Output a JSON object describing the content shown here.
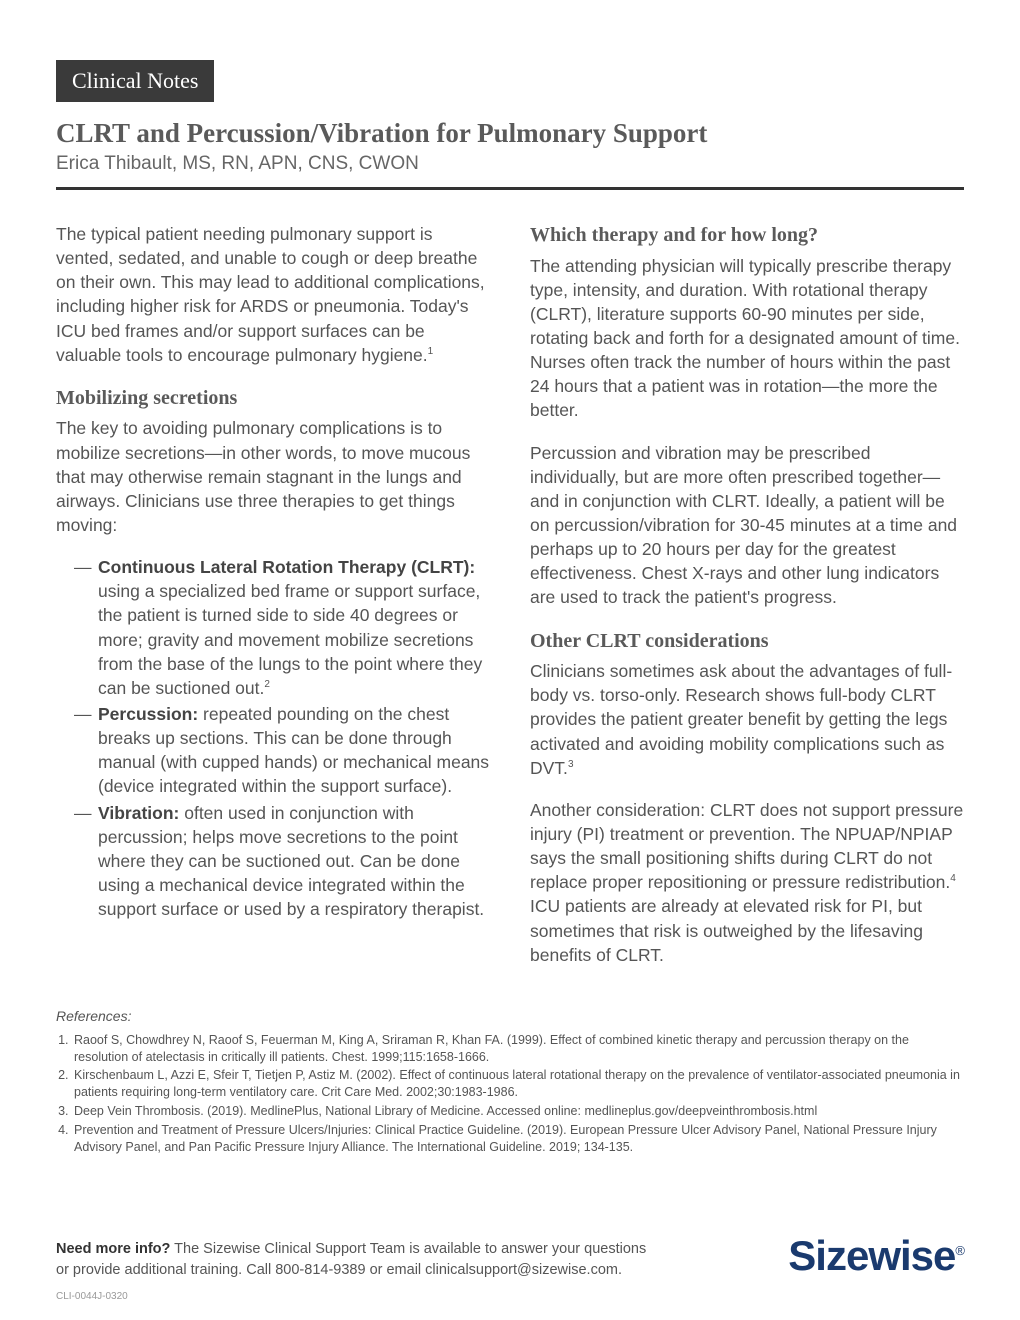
{
  "badge": "Clinical Notes",
  "title": "CLRT and Percussion/Vibration for Pulmonary Support",
  "author": "Erica Thibault, MS, RN, APN, CNS, CWON",
  "left": {
    "intro": "The typical patient needing pulmonary support is vented, sedated, and unable to cough or deep breathe on their own. This may lead to additional complications, including higher risk for ARDS or pneumonia. Today's ICU bed frames and/or support surfaces can be valuable tools to encourage pulmonary hygiene.",
    "intro_sup": "1",
    "h2a": "Mobilizing secretions",
    "p2": "The key to avoiding pulmonary complications is to mobilize secretions—in other words, to move mucous that may otherwise remain stagnant in the lungs and airways. Clinicians use three therapies to get things moving:",
    "li1_b": "Continuous Lateral Rotation Therapy (CLRT):",
    "li1": " using a specialized bed frame or support surface, the patient is turned side to side 40 degrees or more; gravity and movement mobilize secretions from the base of the lungs to the point where they can be suctioned out.",
    "li1_sup": "2",
    "li2_b": "Percussion:",
    "li2": " repeated pounding on the chest breaks up sections. This can be done through manual (with cupped hands) or mechanical means (device integrated within the support surface).",
    "li3_b": "Vibration:",
    "li3": " often used in conjunction with percussion; helps move secretions to the point where they can be suctioned out. Can be done using a mechanical device integrated within the support surface or used by a respiratory therapist."
  },
  "right": {
    "h2a": "Which therapy and for how long?",
    "p1": "The attending physician will typically prescribe therapy type, intensity, and duration. With rotational therapy (CLRT), literature supports 60-90 minutes per side, rotating back and forth for a designated amount of time. Nurses often track the number of hours within the past 24 hours that a patient was in rotation—the more the better.",
    "p2": "Percussion and vibration may be prescribed individually, but are more often prescribed together—and in conjunction with CLRT. Ideally, a patient will be on percussion/vibration for 30-45 minutes at a time and perhaps up to 20 hours per day for the greatest effectiveness. Chest X-rays and other lung indicators are used to track the patient's progress.",
    "h2b": "Other CLRT considerations",
    "p3a": "Clinicians sometimes ask about the advantages of full-body vs. torso-only. Research shows full-body CLRT provides the patient greater benefit by getting the legs activated and avoiding mobility complications such as DVT.",
    "p3_sup": "3",
    "p4a": "Another consideration: CLRT does not support pressure injury (PI) treatment or prevention. The NPUAP/NPIAP says the small positioning shifts during CLRT do not replace proper repositioning or pressure redistribution.",
    "p4_sup": "4",
    "p4b": " ICU patients are already at elevated risk for PI, but sometimes that risk is outweighed by the lifesaving benefits of CLRT."
  },
  "refs_title": "References:",
  "refs": [
    "Raoof S, Chowdhrey N, Raoof S, Feuerman M, King A, Sriraman R, Khan FA. (1999). Effect of combined kinetic therapy and percussion therapy on the resolution of atelectasis in critically ill patients. Chest. 1999;115:1658-1666.",
    "Kirschenbaum L, Azzi E, Sfeir T, Tietjen P, Astiz M. (2002). Effect of continuous lateral rotational therapy on the prevalence of ventilator-associated pneumonia in patients requiring long-term ventilatory care. Crit Care Med. 2002;30:1983-1986.",
    "Deep Vein Thrombosis. (2019). MedlinePlus, National Library of Medicine. Accessed online: medlineplus.gov/deepveinthrombosis.html",
    "Prevention and Treatment of Pressure Ulcers/Injuries: Clinical Practice Guideline. (2019). European Pressure Ulcer Advisory Panel, National Pressure Injury Advisory Panel, and Pan Pacific Pressure Injury Alliance. The International Guideline. 2019; 134-135."
  ],
  "footer_b": "Need more info?",
  "footer_text": " The Sizewise Clinical Support Team is available to answer your questions or provide additional training. Call 800-814-9389 or email clinicalsupport@sizewise.com.",
  "logo": "Sizewise",
  "logo_reg": "®",
  "docid": "CLI-0044J-0320",
  "colors": {
    "badge_bg": "#3a3a3a",
    "heading": "#5a5a5a",
    "body": "#555",
    "logo": "#1a3a6e"
  }
}
